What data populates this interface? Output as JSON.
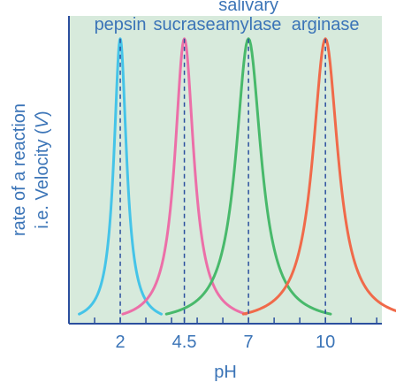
{
  "chart_data": {
    "type": "line",
    "title": "",
    "xlabel": "pH",
    "ylabel_line1": "rate of a reaction",
    "ylabel_line2_prefix": "i.e. Velocity (",
    "ylabel_line2_var": "V",
    "ylabel_line2_suffix": ")",
    "xlim": [
      0,
      12.2
    ],
    "ylim": [
      0,
      1.08
    ],
    "grid": false,
    "legend": "labels-above-peaks",
    "x_ticks": [
      {
        "value": 2,
        "label": "2"
      },
      {
        "value": 4.5,
        "label": "4.5"
      },
      {
        "value": 7,
        "label": "7"
      },
      {
        "value": 10,
        "label": "10"
      }
    ],
    "minor_ticks": [
      1,
      2,
      3,
      4,
      4.5,
      5,
      6,
      7,
      8,
      9,
      10,
      11,
      12
    ],
    "series": [
      {
        "name": "pepsin",
        "label_lines": [
          "pepsin"
        ],
        "peak_x": 2,
        "peak_y": 1,
        "color": "#45c4e8",
        "spread_left": 0.5,
        "spread_right": 0.5
      },
      {
        "name": "sucrase",
        "label_lines": [
          "sucrase"
        ],
        "peak_x": 4.5,
        "peak_y": 1,
        "color": "#ec6fa8",
        "spread_left": 0.75,
        "spread_right": 0.75
      },
      {
        "name": "salivary amylase",
        "label_lines": [
          "salivary",
          "amylase"
        ],
        "peak_x": 7,
        "peak_y": 1,
        "color": "#48b96b",
        "spread_left": 1.0,
        "spread_right": 1.0
      },
      {
        "name": "arginase",
        "label_lines": [
          "arginase"
        ],
        "peak_x": 10,
        "peak_y": 1,
        "color": "#f06a4a",
        "spread_left": 1.0,
        "spread_right": 1.0
      }
    ],
    "colors": {
      "background": "#d7eadc",
      "axis": "#2b4f9e",
      "label": "#3b74b7",
      "dashed": "#2b4f9e"
    }
  }
}
